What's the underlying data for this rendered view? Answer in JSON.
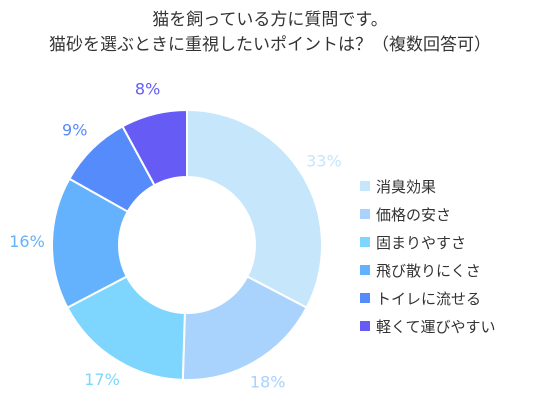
{
  "chart_data": {
    "type": "pie",
    "variant": "donut",
    "title_lines": [
      "猫を飼っている方に質問です。",
      "猫砂を選ぶときに重視したいポイントは？（複数回答可）"
    ],
    "categories": [
      "消臭効果",
      "価格の安さ",
      "固まりやすさ",
      "飛び散りにくさ",
      "トイレに流せる",
      "軽くて運びやすい"
    ],
    "values": [
      33,
      18,
      17,
      16,
      9,
      8
    ],
    "value_labels": [
      "33%",
      "18%",
      "17%",
      "16%",
      "9%",
      "8%"
    ],
    "colors": [
      "#c5e6fb",
      "#a9d2fd",
      "#7ed6fe",
      "#64b2fd",
      "#568bfb",
      "#665cf5"
    ],
    "label_colors": [
      "#c5e6fb",
      "#a9d2fd",
      "#7ed6fe",
      "#64b2fd",
      "#568bfb",
      "#665cf5"
    ],
    "legend_position": "right"
  }
}
